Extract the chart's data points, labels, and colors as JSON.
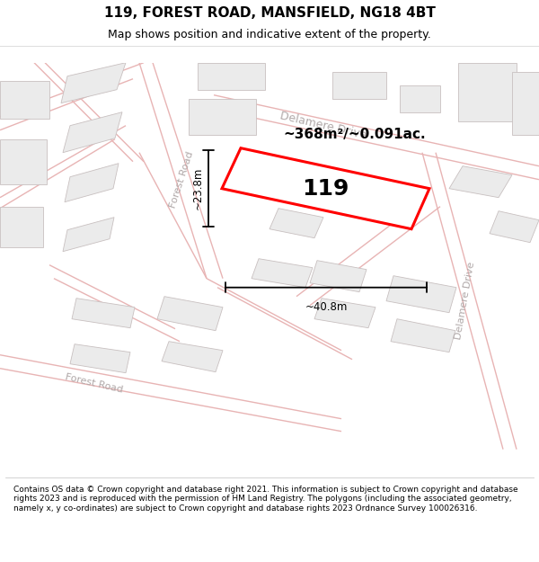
{
  "title": "119, FOREST ROAD, MANSFIELD, NG18 4BT",
  "subtitle": "Map shows position and indicative extent of the property.",
  "footer": "Contains OS data © Crown copyright and database right 2021. This information is subject to Crown copyright and database rights 2023 and is reproduced with the permission of HM Land Registry. The polygons (including the associated geometry, namely x, y co-ordinates) are subject to Crown copyright and database rights 2023 Ordnance Survey 100026316.",
  "area_label": "~368m²/~0.091ac.",
  "property_number": "119",
  "width_label": "~40.8m",
  "height_label": "~23.8m",
  "map_bg": "#faf8f8",
  "road_color": "#e8b4b4",
  "building_face": "#ebebeb",
  "building_edge": "#c8c0c0",
  "property_edge": "#ff0000",
  "street_color": "#b0a8a8",
  "title_fs": 11,
  "subtitle_fs": 9,
  "footer_fs": 6.5
}
